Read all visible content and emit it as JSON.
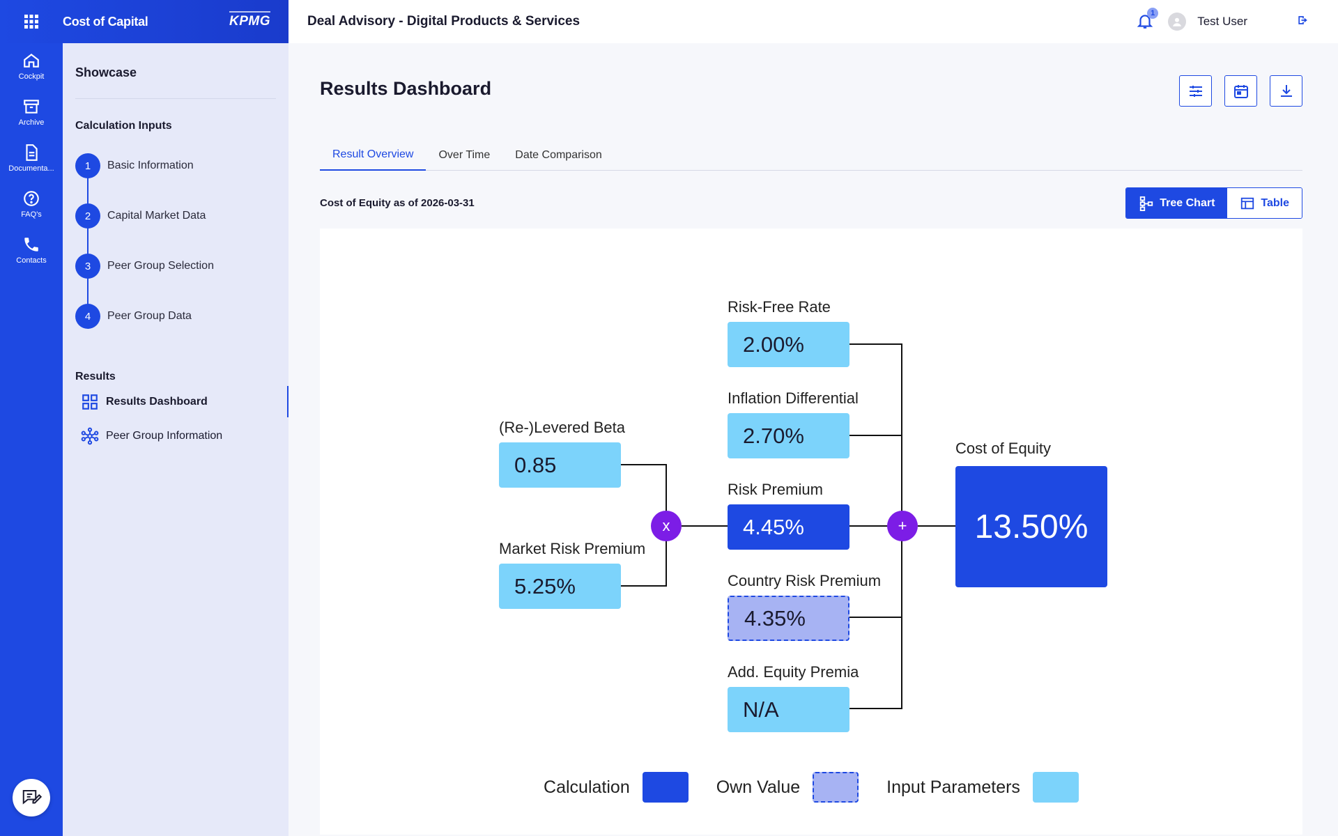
{
  "app": {
    "title": "Cost of Capital",
    "logo": "KPMG",
    "page_title": "Deal Advisory - Digital Products & Services"
  },
  "user": {
    "name": "Test User",
    "notification_count": "1"
  },
  "rail": [
    {
      "label": "Cockpit",
      "icon": "home-icon"
    },
    {
      "label": "Archive",
      "icon": "archive-icon"
    },
    {
      "label": "Documenta...",
      "icon": "document-icon"
    },
    {
      "label": "FAQ's",
      "icon": "help-icon"
    },
    {
      "label": "Contacts",
      "icon": "phone-icon"
    }
  ],
  "panel": {
    "title": "Showcase",
    "inputs_title": "Calculation Inputs",
    "steps": [
      {
        "num": "1",
        "label": "Basic Information"
      },
      {
        "num": "2",
        "label": "Capital Market Data"
      },
      {
        "num": "3",
        "label": "Peer Group Selection"
      },
      {
        "num": "4",
        "label": "Peer Group Data"
      }
    ],
    "results_title": "Results",
    "results": [
      {
        "label": "Results Dashboard",
        "icon": "grid-icon",
        "active": true
      },
      {
        "label": "Peer Group Information",
        "icon": "network-icon",
        "active": false
      }
    ]
  },
  "main": {
    "title": "Results Dashboard",
    "tabs": [
      "Result Overview",
      "Over Time",
      "Date Comparison"
    ],
    "subtitle": "Cost of Equity as of 2026-03-31",
    "toggle": [
      "Tree Chart",
      "Table"
    ]
  },
  "tree": {
    "risk_free": {
      "label": "Risk-Free Rate",
      "value": "2.00%"
    },
    "inflation": {
      "label": "Inflation Differential",
      "value": "2.70%"
    },
    "beta": {
      "label": "(Re-)Levered Beta",
      "value": "0.85"
    },
    "mrp": {
      "label": "Market Risk Premium",
      "value": "5.25%"
    },
    "risk_premium": {
      "label": "Risk Premium",
      "value": "4.45%"
    },
    "crp": {
      "label": "Country Risk Premium",
      "value": "4.35%"
    },
    "aep": {
      "label": "Add. Equity Premia",
      "value": "N/A"
    },
    "coe": {
      "label": "Cost of Equity",
      "value": "13.50%"
    },
    "op_multiply": "x",
    "op_add": "+"
  },
  "legend": [
    "Calculation",
    "Own Value",
    "Input Parameters"
  ],
  "colors": {
    "primary": "#1e49e2",
    "input": "#7cd3fb",
    "own": "#a7b3f3",
    "operator": "#7c1de6"
  }
}
